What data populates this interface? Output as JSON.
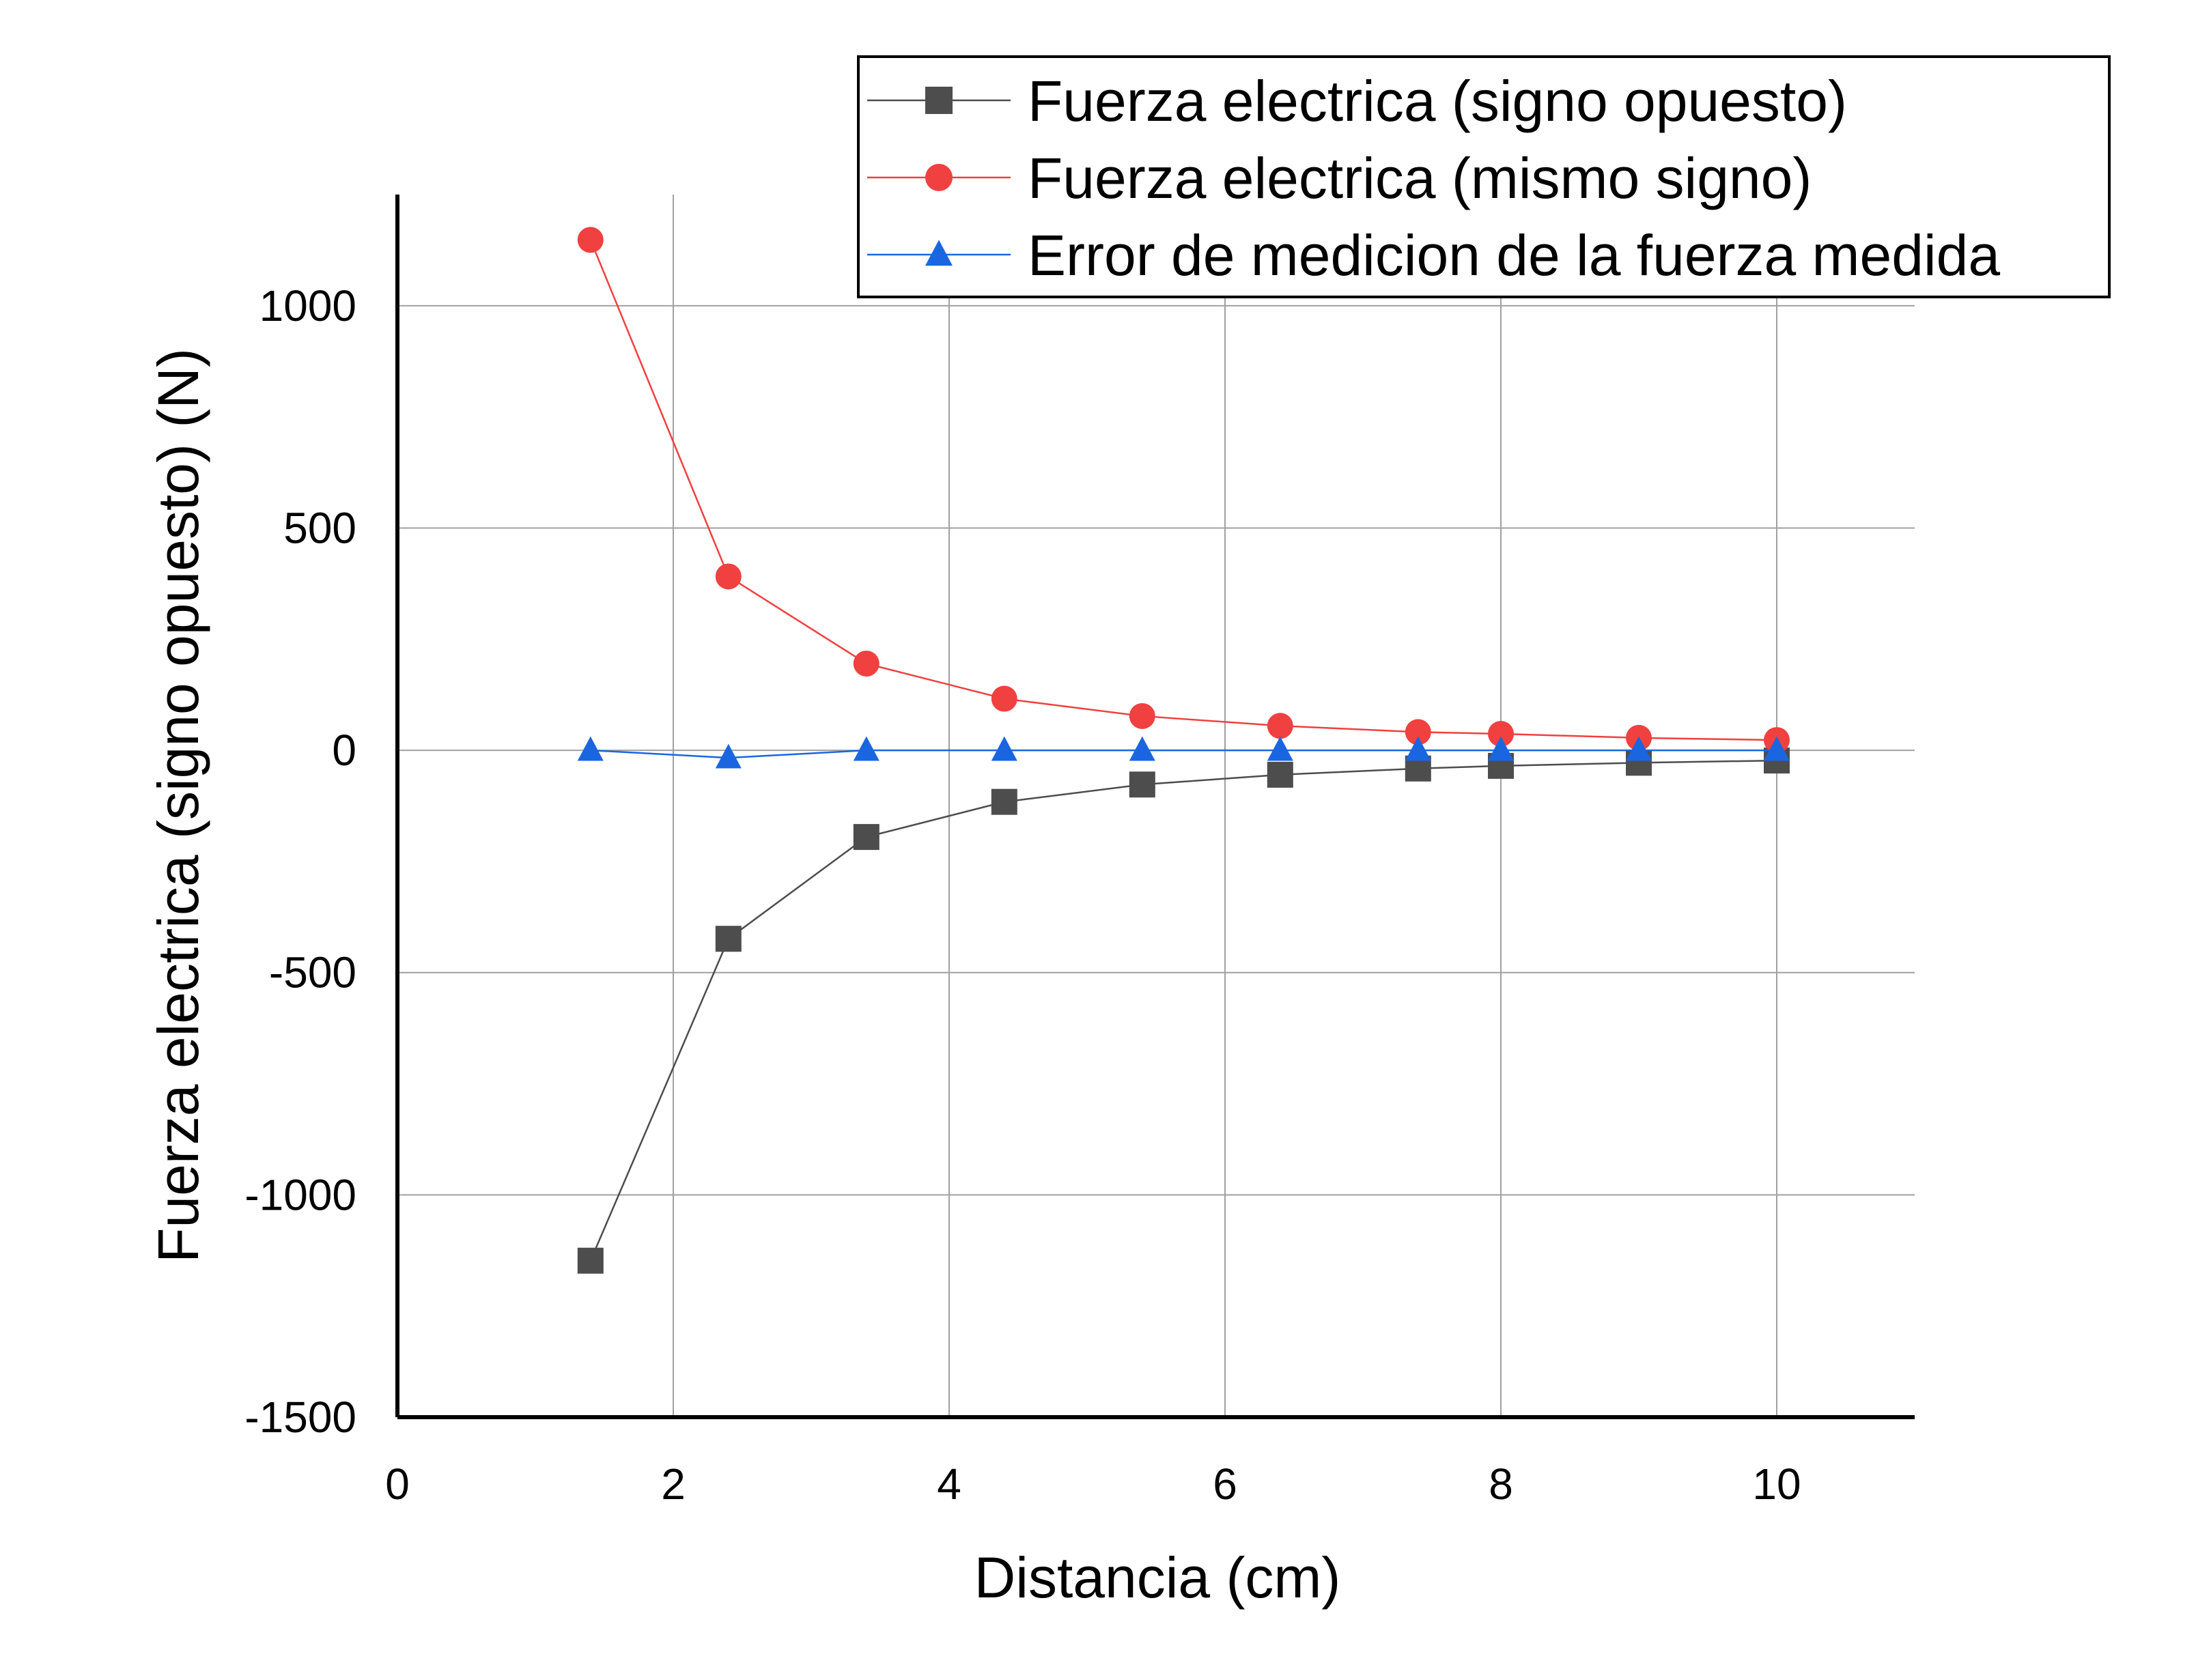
{
  "chart_data": {
    "type": "line",
    "xlabel": "Distancia (cm)",
    "ylabel": "Fuerza electrica (signo opuesto) (N)",
    "xlim": [
      0,
      11
    ],
    "ylim": [
      -1500,
      1250
    ],
    "x_ticks": [
      0,
      2,
      4,
      6,
      8,
      10
    ],
    "y_ticks": [
      -1500,
      -1000,
      -500,
      0,
      500,
      1000
    ],
    "grid": true,
    "legend_position": "top-right",
    "series": [
      {
        "name": "Fuerza electrica (signo opuesto)",
        "marker": "square",
        "color": "#4d4d4d",
        "x": [
          1.4,
          2.4,
          3.4,
          4.4,
          5.4,
          6.4,
          7.4,
          8.0,
          9.0,
          10.0
        ],
        "y": [
          -1148,
          -424,
          -195,
          -116,
          -77,
          -55,
          -41,
          -35,
          -28,
          -23
        ]
      },
      {
        "name": "Fuerza electrica (mismo signo)",
        "marker": "circle",
        "color": "#f04040",
        "x": [
          1.4,
          2.4,
          3.4,
          4.4,
          5.4,
          6.4,
          7.4,
          8.0,
          9.0,
          10.0
        ],
        "y": [
          1148,
          391,
          195,
          116,
          77,
          55,
          41,
          37,
          28,
          23
        ]
      },
      {
        "name": "Error de medicion de la fuerza medida",
        "marker": "triangle",
        "color": "#1a66e0",
        "x": [
          1.4,
          2.4,
          3.4,
          4.4,
          5.4,
          6.4,
          7.4,
          8.0,
          9.0,
          10.0
        ],
        "y": [
          0,
          -17,
          0,
          0,
          0,
          0,
          0,
          0,
          0,
          0
        ]
      }
    ]
  }
}
